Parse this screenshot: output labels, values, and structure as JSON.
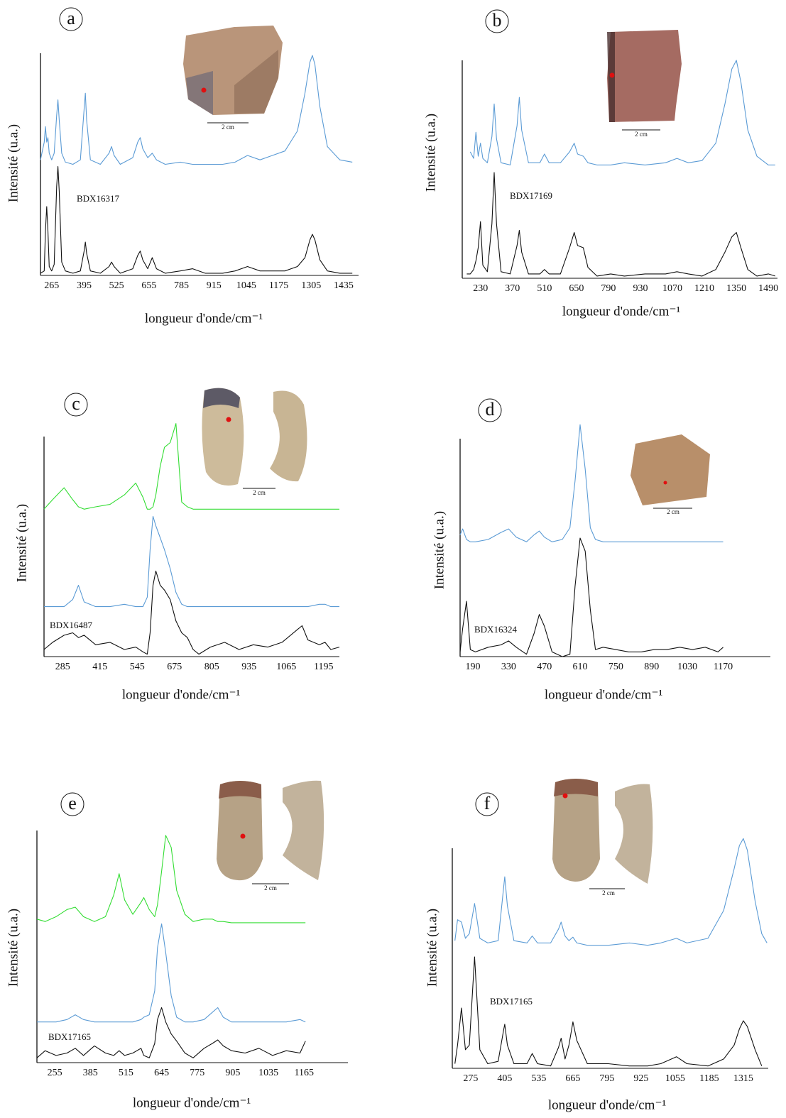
{
  "chart_data": [
    {
      "type": "line",
      "panel_label": "a",
      "xlabel": "longueur d'onde/cm⁻¹",
      "ylabel": "Intensité (u.a.)",
      "annotation": "BDX16317",
      "scale_label": "2 cm",
      "xlim": [
        220,
        1495
      ],
      "ylim": [
        0,
        100
      ],
      "xticks": [
        265,
        395,
        525,
        655,
        785,
        915,
        1045,
        1175,
        1305,
        1435
      ],
      "x": [
        220,
        235,
        240,
        245,
        250,
        255,
        265,
        275,
        285,
        290,
        295,
        305,
        320,
        350,
        380,
        395,
        400,
        405,
        420,
        460,
        495,
        505,
        515,
        540,
        590,
        610,
        620,
        630,
        650,
        668,
        685,
        720,
        780,
        830,
        880,
        950,
        1000,
        1050,
        1100,
        1200,
        1250,
        1280,
        1300,
        1310,
        1320,
        1340,
        1370,
        1420,
        1470
      ],
      "series": [
        {
          "color": "#5b9bd5",
          "values": [
            52,
            60,
            67,
            60,
            62,
            55,
            52,
            55,
            72,
            79,
            70,
            55,
            51,
            50,
            52,
            75,
            82,
            70,
            52,
            50,
            55,
            58,
            54,
            50,
            53,
            60,
            62,
            57,
            53,
            55,
            52,
            50,
            51,
            50,
            50,
            50,
            51,
            54,
            52,
            56,
            65,
            82,
            96,
            99,
            95,
            76,
            58,
            52,
            51
          ]
        },
        {
          "color": "#111111",
          "values": [
            1,
            2,
            20,
            31,
            20,
            4,
            2,
            5,
            40,
            49,
            38,
            6,
            2,
            1,
            2,
            11,
            15,
            10,
            2,
            1,
            4,
            6,
            4,
            1,
            3,
            9,
            11,
            7,
            3,
            8,
            3,
            1,
            2,
            3,
            1,
            1,
            2,
            4,
            2,
            2,
            4,
            8,
            16,
            18.5,
            16,
            7,
            2,
            1,
            1
          ]
        }
      ]
    },
    {
      "type": "line",
      "panel_label": "b",
      "xlabel": "longueur d'onde/cm⁻¹",
      "ylabel": "Intensité (u.a.)",
      "annotation": "BDX17169",
      "scale_label": "2 cm",
      "xlim": [
        150,
        1530
      ],
      "ylim": [
        0,
        100
      ],
      "xticks": [
        230,
        370,
        510,
        650,
        790,
        930,
        1070,
        1210,
        1350,
        1490
      ],
      "x": [
        170,
        185,
        200,
        210,
        220,
        230,
        240,
        260,
        280,
        290,
        300,
        320,
        360,
        390,
        400,
        410,
        440,
        490,
        510,
        530,
        580,
        620,
        640,
        655,
        680,
        700,
        740,
        800,
        860,
        950,
        1040,
        1090,
        1140,
        1200,
        1260,
        1300,
        1330,
        1350,
        1370,
        1400,
        1440,
        1490,
        1520
      ],
      "series": [
        {
          "color": "#5b9bd5",
          "values": [
            null,
            58,
            55,
            67,
            56,
            62,
            55,
            53,
            65,
            80,
            64,
            53,
            52,
            70,
            83,
            68,
            53,
            53,
            57,
            53,
            53,
            58,
            62,
            57,
            56,
            53,
            52,
            52,
            53,
            52,
            53,
            55,
            53,
            54,
            62,
            80,
            96,
            100,
            90,
            68,
            56,
            52,
            52
          ]
        },
        {
          "color": "#111111",
          "values": [
            2,
            2,
            4,
            8,
            14,
            26,
            6,
            3,
            25,
            48.5,
            25,
            3,
            2,
            15,
            22,
            12,
            2,
            2,
            4,
            2,
            2,
            14,
            21,
            15,
            14,
            5,
            1,
            2,
            1,
            2,
            2,
            3,
            2,
            1,
            4,
            12,
            19,
            21,
            14,
            4,
            1,
            2,
            1
          ]
        }
      ]
    },
    {
      "type": "line",
      "panel_label": "c",
      "xlabel": "longueur d'onde/cm⁻¹",
      "ylabel": "Intensité (u.a.)",
      "annotation": "BDX16487",
      "scale_label": "2 cm",
      "xlim": [
        220,
        1250
      ],
      "ylim": [
        0,
        100
      ],
      "xticks": [
        285,
        415,
        545,
        675,
        805,
        935,
        1065,
        1195
      ],
      "x": [
        220,
        250,
        290,
        320,
        340,
        360,
        400,
        450,
        500,
        540,
        565,
        580,
        590,
        600,
        610,
        625,
        640,
        660,
        680,
        700,
        720,
        740,
        760,
        800,
        850,
        900,
        950,
        1000,
        1050,
        1100,
        1120,
        1140,
        1180,
        1200,
        1220,
        1250
      ],
      "series": [
        {
          "color": "#33dd33",
          "values": [
            62,
            66,
            71,
            66,
            63,
            62,
            63,
            64,
            68,
            73,
            67,
            62,
            62,
            63,
            68,
            80,
            88,
            90,
            98,
            65,
            63,
            62,
            62,
            62,
            62,
            62,
            62,
            62,
            62,
            62,
            62,
            62,
            62,
            62,
            62,
            62
          ]
        },
        {
          "color": "#5b9bd5",
          "values": [
            21,
            21,
            21,
            24,
            30,
            23,
            21,
            21,
            22,
            21,
            21,
            25,
            45,
            59,
            55,
            50,
            45,
            37,
            27,
            22,
            21,
            21,
            21,
            21,
            21,
            21,
            21,
            21,
            21,
            21,
            21,
            21,
            22,
            22,
            21,
            21
          ]
        },
        {
          "color": "#111111",
          "values": [
            3,
            6,
            9,
            10,
            8,
            9,
            5,
            6,
            3,
            4,
            2,
            1,
            10,
            30,
            36,
            30,
            28,
            24,
            15,
            10,
            8,
            3,
            1,
            4,
            6,
            3,
            5,
            4,
            6,
            11,
            13,
            7,
            5,
            6,
            3,
            4
          ]
        }
      ]
    },
    {
      "type": "line",
      "panel_label": "d",
      "xlabel": "longueur d'onde/cm⁻¹",
      "ylabel": "Intensité (u.a.)",
      "annotation": "BDX16324",
      "scale_label": "2 cm",
      "xlim": [
        140,
        1355
      ],
      "ylim": [
        0,
        100
      ],
      "xticks": [
        190,
        330,
        470,
        610,
        750,
        890,
        1030,
        1170
      ],
      "x": [
        140,
        150,
        165,
        180,
        200,
        250,
        300,
        330,
        360,
        400,
        430,
        450,
        470,
        500,
        540,
        570,
        590,
        610,
        630,
        650,
        670,
        700,
        750,
        800,
        850,
        900,
        950,
        1000,
        1050,
        1100,
        1150,
        1170
      ],
      "series": [
        {
          "color": "#5b9bd5",
          "values": [
            52,
            54.5,
            50,
            49,
            49,
            50,
            53,
            54.5,
            51,
            49,
            52,
            53.6,
            51,
            49,
            50,
            55,
            75,
            99,
            80,
            55,
            50,
            49,
            49,
            49,
            49,
            49,
            49,
            49,
            49,
            49,
            49,
            49
          ]
        },
        {
          "color": "#111111",
          "values": [
            2,
            12,
            23.6,
            3,
            2,
            4,
            5,
            6.7,
            4,
            1,
            10,
            18,
            13,
            2,
            0,
            1,
            30,
            50.6,
            45,
            20,
            3,
            4,
            3,
            2,
            2,
            3,
            3,
            4,
            3,
            4,
            2,
            4
          ]
        }
      ]
    },
    {
      "type": "line",
      "panel_label": "e",
      "xlabel": "longueur d'onde/cm⁻¹",
      "ylabel": "Intensité (u.a.)",
      "annotation": "BDX17165",
      "scale_label": "2 cm",
      "xlim": [
        190,
        1325
      ],
      "ylim": [
        0,
        100
      ],
      "xticks": [
        255,
        385,
        515,
        645,
        775,
        905,
        1035,
        1165
      ],
      "x": [
        190,
        220,
        260,
        300,
        330,
        360,
        400,
        440,
        470,
        490,
        510,
        540,
        570,
        580,
        600,
        620,
        630,
        645,
        660,
        680,
        700,
        730,
        760,
        800,
        830,
        850,
        870,
        900,
        950,
        1000,
        1050,
        1100,
        1150,
        1170
      ],
      "series": [
        {
          "color": "#33dd33",
          "values": [
            60,
            59,
            61,
            64,
            65,
            61,
            59,
            61,
            70,
            79,
            68,
            62,
            67,
            69,
            64,
            61,
            66,
            80,
            95,
            90,
            72,
            62,
            59,
            60,
            60,
            59,
            59,
            58.5,
            58.5,
            58.5,
            58.5,
            58.5,
            58.5,
            58.5
          ]
        },
        {
          "color": "#5b9bd5",
          "values": [
            17,
            17,
            17,
            18,
            20,
            18,
            17,
            17,
            17,
            17,
            17,
            17,
            18,
            19,
            20,
            30,
            48,
            58,
            46,
            28,
            19,
            17,
            17,
            18,
            21,
            23,
            19,
            17,
            17,
            17,
            17,
            17,
            18,
            17
          ]
        },
        {
          "color": "#111111",
          "values": [
            2,
            5,
            3,
            4,
            6,
            3,
            7,
            4,
            3,
            5,
            3,
            4,
            6,
            3,
            2,
            8,
            18,
            23,
            17,
            12,
            9,
            4,
            2,
            6,
            8,
            9.5,
            7,
            5,
            4,
            6,
            3,
            5,
            4,
            9
          ]
        }
      ]
    },
    {
      "type": "line",
      "panel_label": "f",
      "xlabel": "longueur d'onde/cm⁻¹",
      "ylabel": "Intensité (u.a.)",
      "annotation": "BDX17165",
      "scale_label": "2 cm",
      "xlim": [
        205,
        1410
      ],
      "ylim": [
        0,
        100
      ],
      "xticks": [
        275,
        405,
        535,
        665,
        795,
        925,
        1055,
        1185,
        1315
      ],
      "x": [
        215,
        225,
        240,
        255,
        270,
        290,
        310,
        340,
        380,
        400,
        405,
        415,
        440,
        490,
        510,
        530,
        580,
        610,
        620,
        635,
        650,
        665,
        680,
        720,
        800,
        880,
        950,
        1000,
        1060,
        1100,
        1180,
        1240,
        1280,
        1300,
        1315,
        1330,
        1360,
        1385,
        1405
      ],
      "series": [
        {
          "color": "#5b9bd5",
          "values": [
            55,
            64,
            63,
            56,
            58,
            71,
            56,
            54,
            55,
            77,
            82.5,
            70,
            55,
            54,
            57,
            54,
            54,
            60,
            63,
            57,
            55,
            56.5,
            54,
            53,
            53,
            54,
            53,
            54,
            56,
            54,
            56,
            68,
            86,
            96,
            99,
            94,
            72,
            58,
            54
          ]
        },
        {
          "color": "#111111",
          "values": [
            2,
            10,
            26,
            8,
            10,
            48,
            8,
            2,
            3,
            16,
            19,
            10,
            2,
            2,
            6.4,
            2,
            1,
            9,
            13,
            4,
            10,
            20,
            12,
            2,
            2,
            1,
            1,
            2,
            5,
            2,
            1,
            4,
            10,
            17,
            20.5,
            18,
            8,
            1,
            null
          ]
        }
      ]
    }
  ]
}
